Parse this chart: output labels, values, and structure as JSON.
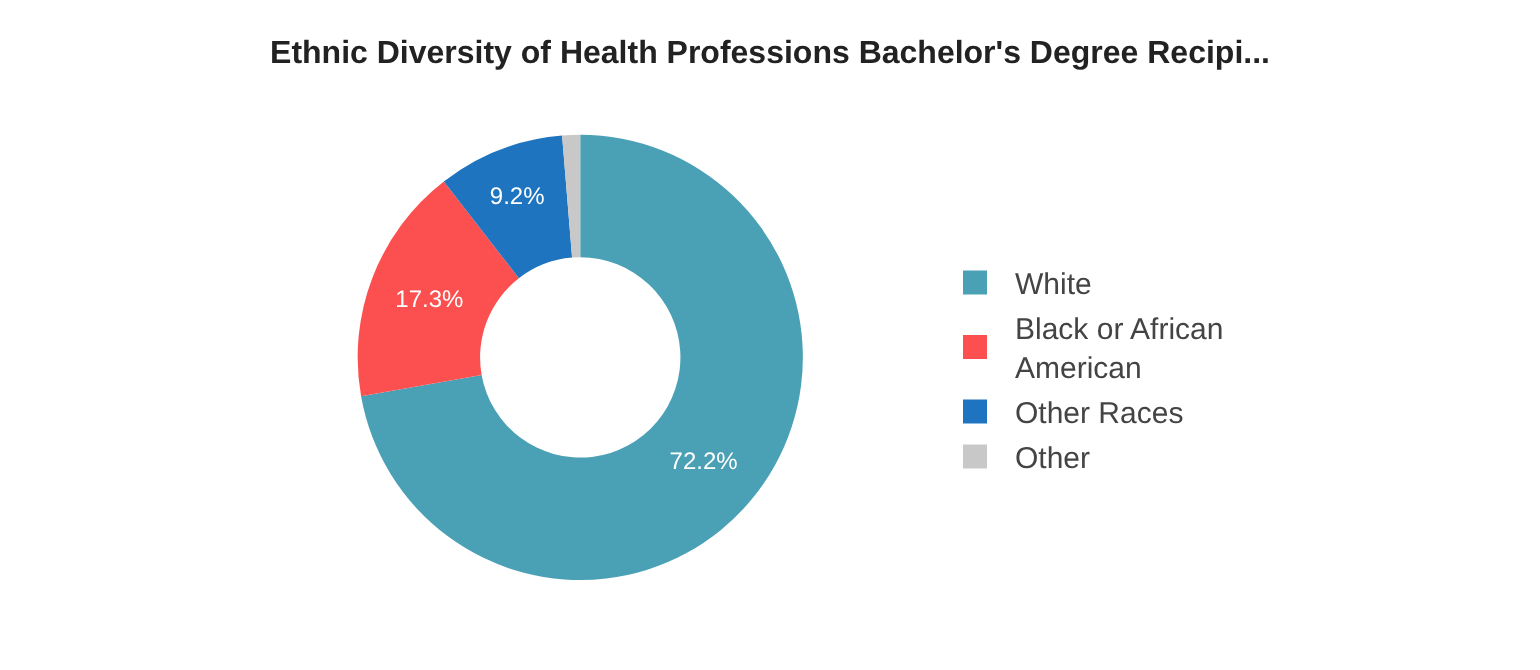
{
  "chart_data": {
    "type": "donut",
    "title": "Ethnic Diversity of Health Professions Bachelor's Degree Recipi...",
    "categories": [
      "White",
      "Black or African American",
      "Other Races",
      "Other"
    ],
    "values": [
      72.2,
      17.3,
      9.2,
      1.3
    ],
    "colors": [
      "#4aa0b5",
      "#fc5050",
      "#1f74bf",
      "#c8c8c8"
    ],
    "value_labels": [
      "72.2%",
      "17.3%",
      "9.2%",
      null
    ],
    "legend": "right"
  }
}
